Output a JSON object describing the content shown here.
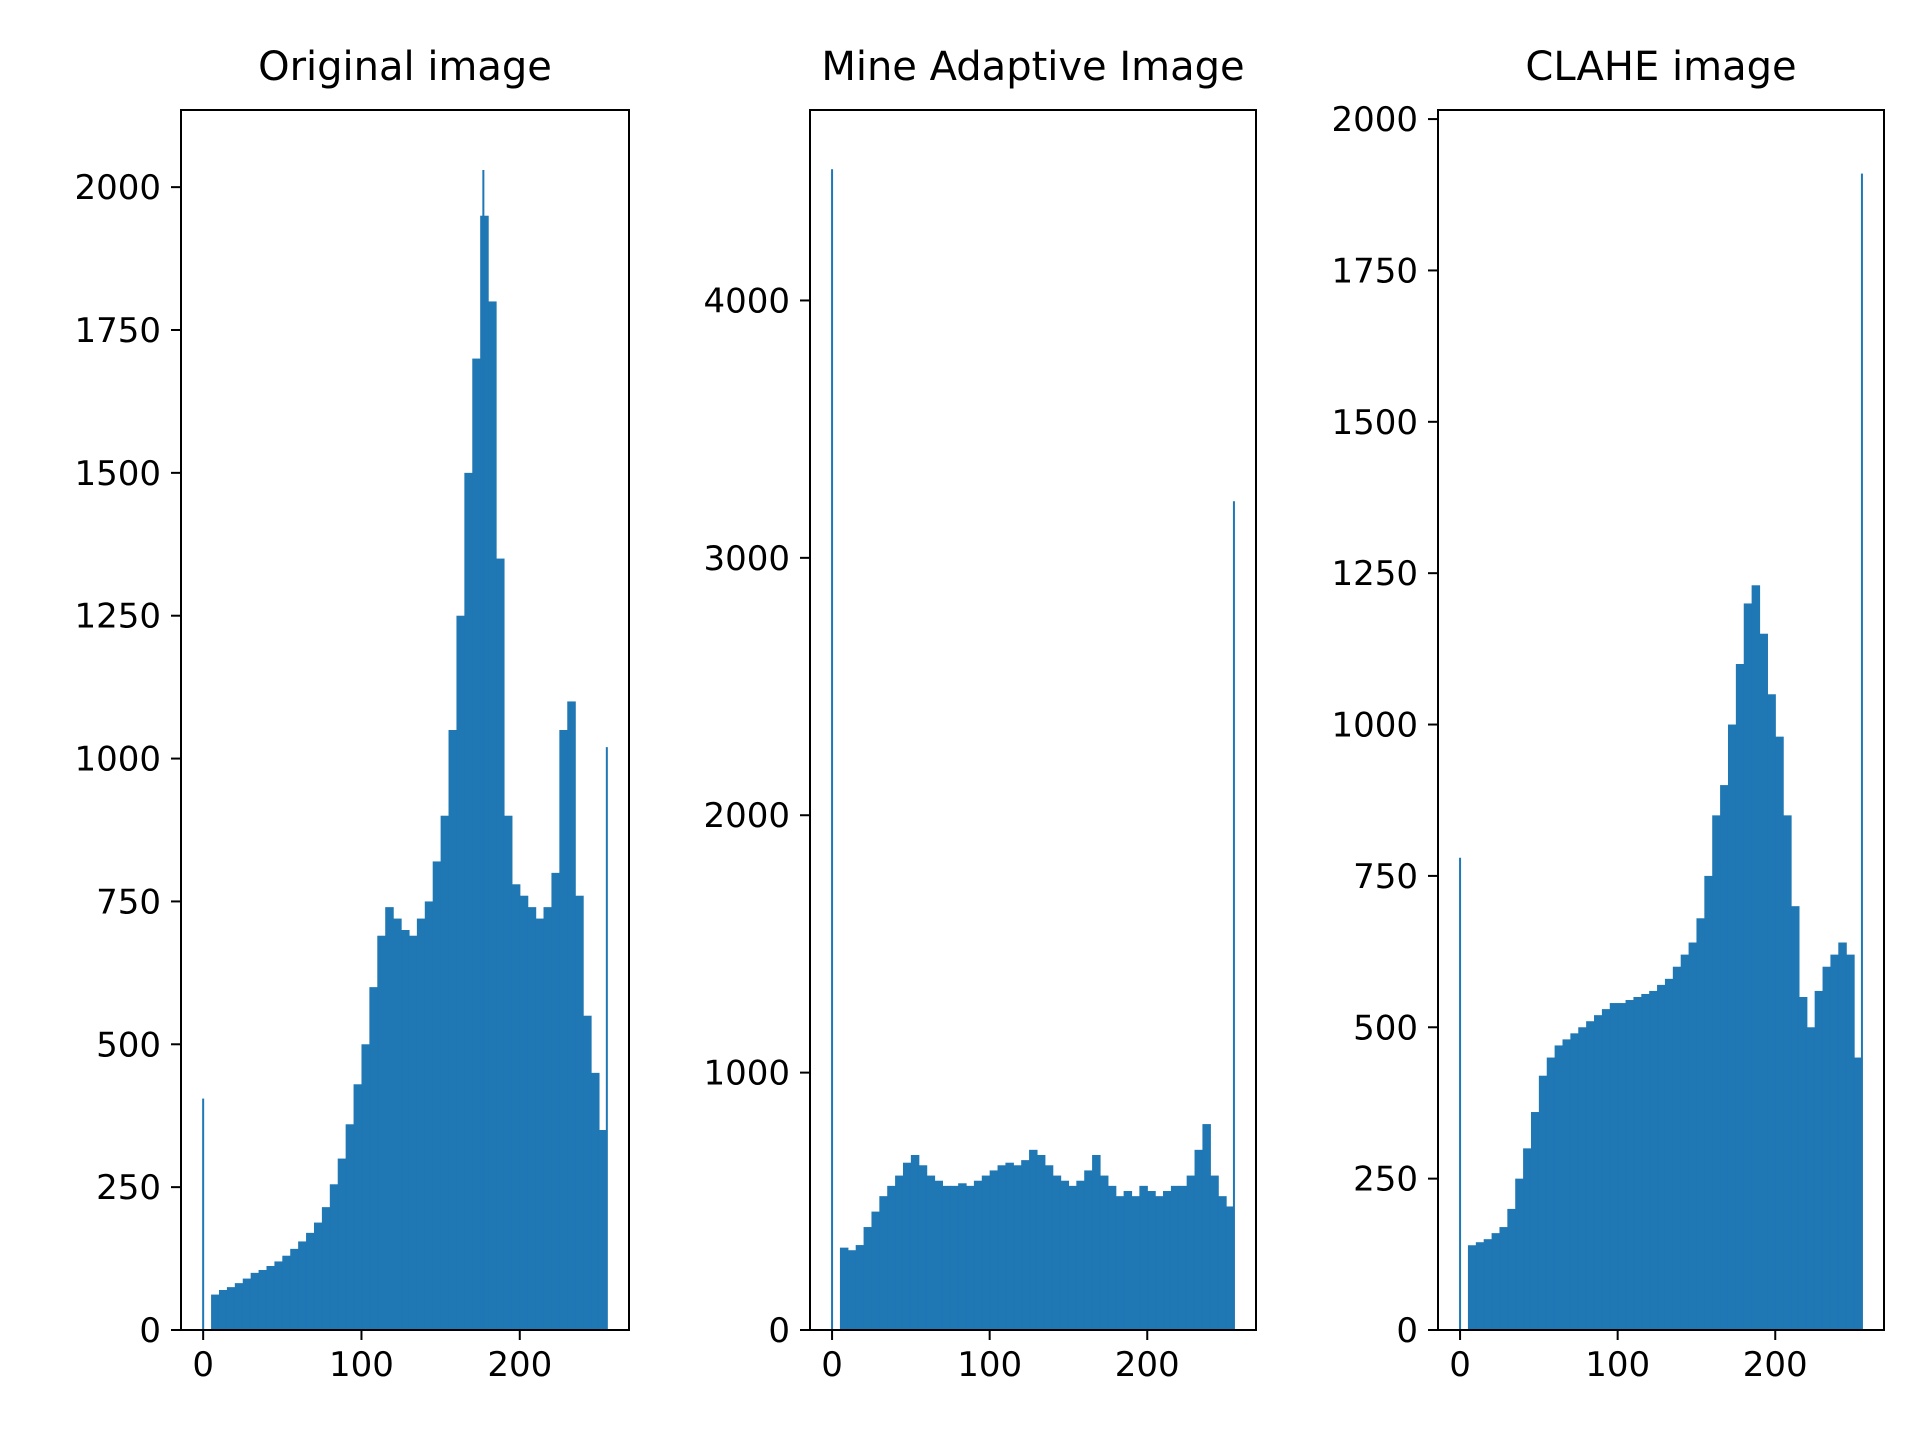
{
  "chart_data": [
    {
      "type": "bar",
      "title": "Original image",
      "xlim": [
        -14,
        269
      ],
      "ylim": [
        0,
        2135
      ],
      "xticks": [
        0,
        100,
        200
      ],
      "yticks": [
        0,
        250,
        500,
        750,
        1000,
        1250,
        1500,
        1750,
        2000
      ],
      "color": "#1f77b4",
      "x": [
        0,
        5,
        10,
        15,
        20,
        25,
        30,
        35,
        40,
        45,
        50,
        55,
        60,
        65,
        70,
        75,
        80,
        85,
        90,
        95,
        100,
        105,
        110,
        115,
        120,
        125,
        130,
        135,
        140,
        145,
        150,
        155,
        160,
        165,
        170,
        175,
        177,
        180,
        185,
        190,
        195,
        200,
        205,
        210,
        215,
        220,
        225,
        230,
        235,
        240,
        245,
        250,
        255
      ],
      "values": [
        405,
        62,
        70,
        75,
        82,
        90,
        100,
        105,
        112,
        120,
        130,
        142,
        155,
        170,
        188,
        215,
        255,
        300,
        360,
        430,
        500,
        600,
        690,
        740,
        720,
        700,
        690,
        720,
        750,
        820,
        900,
        1050,
        1250,
        1500,
        1700,
        1950,
        2030,
        1800,
        1350,
        900,
        780,
        760,
        740,
        720,
        740,
        800,
        1050,
        1100,
        760,
        550,
        450,
        350,
        1020
      ]
    },
    {
      "type": "bar",
      "title": "Mine Adaptive Image",
      "xlim": [
        -14,
        269
      ],
      "ylim": [
        0,
        4740
      ],
      "xticks": [
        0,
        100,
        200
      ],
      "yticks": [
        0,
        1000,
        2000,
        3000,
        4000
      ],
      "color": "#1f77b4",
      "x": [
        0,
        5,
        10,
        15,
        20,
        25,
        30,
        35,
        40,
        45,
        50,
        55,
        60,
        65,
        70,
        75,
        80,
        85,
        90,
        95,
        100,
        105,
        110,
        115,
        120,
        125,
        130,
        135,
        140,
        145,
        150,
        155,
        160,
        165,
        170,
        175,
        180,
        185,
        190,
        195,
        200,
        205,
        210,
        215,
        220,
        225,
        230,
        235,
        240,
        245,
        250,
        255
      ],
      "values": [
        4510,
        320,
        310,
        330,
        400,
        460,
        520,
        560,
        600,
        650,
        680,
        640,
        600,
        580,
        560,
        560,
        570,
        560,
        580,
        600,
        620,
        640,
        650,
        640,
        660,
        700,
        680,
        640,
        600,
        580,
        560,
        580,
        620,
        680,
        600,
        560,
        520,
        540,
        520,
        560,
        540,
        520,
        540,
        560,
        560,
        600,
        700,
        800,
        600,
        520,
        480,
        3220
      ]
    },
    {
      "type": "bar",
      "title": "CLAHE image",
      "xlim": [
        -14,
        269
      ],
      "ylim": [
        0,
        2015
      ],
      "xticks": [
        0,
        100,
        200
      ],
      "yticks": [
        0,
        250,
        500,
        750,
        1000,
        1250,
        1500,
        1750,
        2000
      ],
      "color": "#1f77b4",
      "x": [
        0,
        5,
        10,
        15,
        20,
        25,
        30,
        35,
        40,
        45,
        50,
        55,
        60,
        65,
        70,
        75,
        80,
        85,
        90,
        95,
        100,
        105,
        110,
        115,
        120,
        125,
        130,
        135,
        140,
        145,
        150,
        155,
        160,
        165,
        170,
        175,
        180,
        185,
        190,
        195,
        200,
        205,
        210,
        215,
        220,
        225,
        230,
        235,
        240,
        245,
        250,
        255
      ],
      "values": [
        780,
        140,
        145,
        150,
        160,
        170,
        200,
        250,
        300,
        360,
        420,
        450,
        470,
        480,
        490,
        500,
        510,
        520,
        530,
        540,
        540,
        545,
        550,
        555,
        560,
        570,
        580,
        600,
        620,
        640,
        680,
        750,
        850,
        900,
        1000,
        1100,
        1200,
        1230,
        1150,
        1050,
        980,
        850,
        700,
        550,
        500,
        560,
        600,
        620,
        640,
        620,
        450,
        1910
      ]
    }
  ]
}
